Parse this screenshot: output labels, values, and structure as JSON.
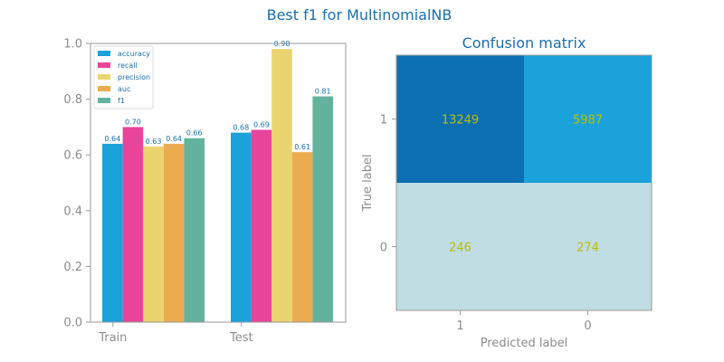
{
  "figure": {
    "suptitle": "Best f1 for MultinomialNB"
  },
  "chart_data": [
    {
      "type": "bar",
      "title": "",
      "xlabel": "",
      "ylabel": "",
      "categories": [
        "Train",
        "Test"
      ],
      "ylim": [
        0,
        1.0
      ],
      "yticks": [
        "0.0",
        "0.2",
        "0.4",
        "0.6",
        "0.8",
        "1.0"
      ],
      "legend_position": "top-left",
      "series": [
        {
          "name": "accuracy",
          "color": "#1ba2db",
          "values": [
            0.64,
            0.68
          ],
          "labels": [
            "0.64",
            "0.68"
          ]
        },
        {
          "name": "recall",
          "color": "#e8449a",
          "values": [
            0.7,
            0.69
          ],
          "labels": [
            "0.70",
            "0.69"
          ]
        },
        {
          "name": "precision",
          "color": "#ead470",
          "values": [
            0.63,
            0.98
          ],
          "labels": [
            "0.63",
            "0.98"
          ]
        },
        {
          "name": "auc",
          "color": "#eaac4f",
          "values": [
            0.64,
            0.61
          ],
          "labels": [
            "0.64",
            "0.61"
          ]
        },
        {
          "name": "f1",
          "color": "#63b29d",
          "values": [
            0.66,
            0.81
          ],
          "labels": [
            "0.66",
            "0.81"
          ]
        }
      ]
    },
    {
      "type": "heatmap",
      "title": "Confusion matrix",
      "xlabel": "Predicted label",
      "ylabel": "True label",
      "x_categories": [
        "1",
        "0"
      ],
      "y_categories": [
        "1",
        "0"
      ],
      "values": [
        [
          13249,
          5987
        ],
        [
          246,
          274
        ]
      ],
      "value_labels": [
        [
          "13249",
          "5987"
        ],
        [
          "246",
          "274"
        ]
      ],
      "cell_colors": [
        [
          "#0d6fb3",
          "#1ba2db"
        ],
        [
          "#bfdde2",
          "#bfdde2"
        ]
      ],
      "value_color": "#bdbd00"
    }
  ]
}
